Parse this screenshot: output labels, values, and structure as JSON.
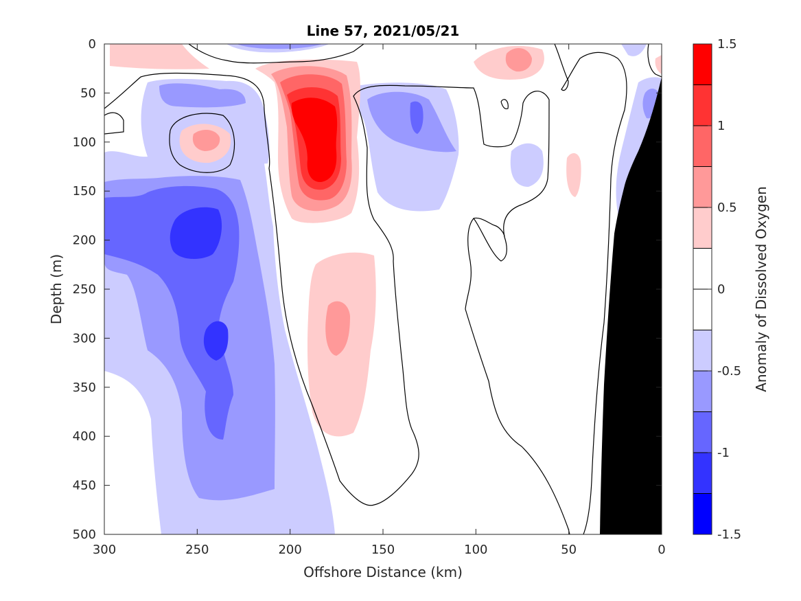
{
  "chart_data": {
    "type": "contour",
    "title": "Line 57, 2021/05/21",
    "xlabel": "Offshore Distance (km)",
    "ylabel": "Depth (m)",
    "colorbar_label": "Anomaly of Dissolved Oxygen",
    "xlim": [
      300,
      0
    ],
    "ylim": [
      0,
      500
    ],
    "y_reversed": true,
    "x_reversed": true,
    "xticks": [
      300,
      250,
      200,
      150,
      100,
      50,
      0
    ],
    "yticks": [
      0,
      50,
      100,
      150,
      200,
      250,
      300,
      350,
      400,
      450,
      500
    ],
    "colorbar_ticks": [
      "1.5",
      "1",
      "0.5",
      "0",
      "-0.5",
      "-1",
      "-1.5"
    ],
    "colorbar_range": [
      -1.5,
      1.5
    ],
    "contour_levels": [
      -1.5,
      -1.25,
      -1.0,
      -0.75,
      -0.5,
      -0.25,
      0.25,
      0.5,
      0.75,
      1.0,
      1.25,
      1.5
    ],
    "colormap": [
      "#0000ff",
      "#3333ff",
      "#6666ff",
      "#9999ff",
      "#ccccff",
      "#ffffff",
      "#ffcccc",
      "#ff9999",
      "#ff6666",
      "#ff3333",
      "#ff0000"
    ],
    "bathymetry_color": "#000000",
    "features": [
      {
        "kind": "max",
        "x_km": 185,
        "depth_m": 110,
        "value": 1.4
      },
      {
        "kind": "max",
        "x_km": 175,
        "depth_m": 290,
        "value": 0.6
      },
      {
        "kind": "max",
        "x_km": 250,
        "depth_m": 95,
        "value": 0.6
      },
      {
        "kind": "min",
        "x_km": 245,
        "depth_m": 195,
        "value": -1.1
      },
      {
        "kind": "min",
        "x_km": 240,
        "depth_m": 305,
        "value": -1.1
      },
      {
        "kind": "min",
        "x_km": 135,
        "depth_m": 80,
        "value": -0.9
      },
      {
        "kind": "max",
        "x_km": 75,
        "depth_m": 15,
        "value": 0.6
      }
    ]
  }
}
